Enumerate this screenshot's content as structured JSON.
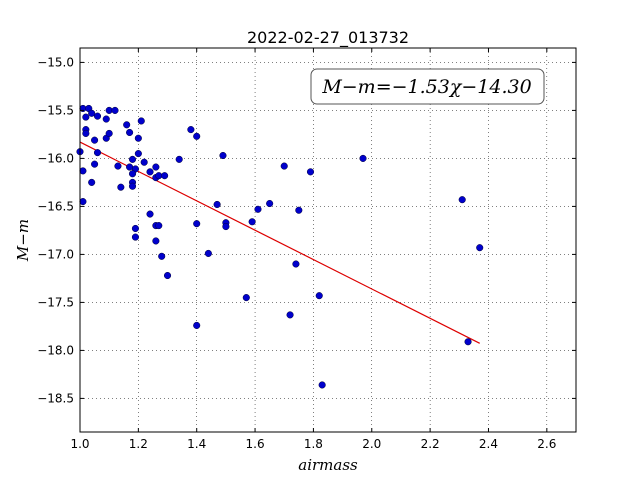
{
  "chart_data": {
    "type": "scatter",
    "title": "2022-02-27_013732",
    "xlabel": "airmass",
    "ylabel": "M−m",
    "xlim": [
      1.0,
      2.7
    ],
    "ylim": [
      -18.85,
      -14.85
    ],
    "y_inverted": true,
    "grid": true,
    "xticks": [
      1.0,
      1.2,
      1.4,
      1.6,
      1.8,
      2.0,
      2.2,
      2.4,
      2.6
    ],
    "xtick_labels": [
      "1.0",
      "1.2",
      "1.4",
      "1.6",
      "1.8",
      "2.0",
      "2.2",
      "2.4",
      "2.6"
    ],
    "yticks": [
      -15.0,
      -15.5,
      -16.0,
      -16.5,
      -17.0,
      -17.5,
      -18.0,
      -18.5
    ],
    "ytick_labels": [
      "−15.0",
      "−15.5",
      "−16.0",
      "−16.5",
      "−17.0",
      "−17.5",
      "−18.0",
      "−18.5"
    ],
    "annotation": "M−m=−1.53χ−14.30",
    "point_color": "#0000cc",
    "fit_color": "#dd0000",
    "fit": {
      "slope": -1.53,
      "intercept": -14.3,
      "x_range": [
        1.0,
        2.37
      ]
    },
    "points": [
      {
        "x": 1.01,
        "y": -15.48
      },
      {
        "x": 1.03,
        "y": -15.48
      },
      {
        "x": 1.02,
        "y": -15.57
      },
      {
        "x": 1.04,
        "y": -15.53
      },
      {
        "x": 1.06,
        "y": -15.56
      },
      {
        "x": 1.09,
        "y": -15.59
      },
      {
        "x": 1.1,
        "y": -15.5
      },
      {
        "x": 1.12,
        "y": -15.5
      },
      {
        "x": 1.02,
        "y": -15.7
      },
      {
        "x": 1.02,
        "y": -15.74
      },
      {
        "x": 1.05,
        "y": -15.81
      },
      {
        "x": 1.09,
        "y": -15.79
      },
      {
        "x": 1.1,
        "y": -15.74
      },
      {
        "x": 1.06,
        "y": -15.94
      },
      {
        "x": 1.0,
        "y": -15.93
      },
      {
        "x": 1.05,
        "y": -16.06
      },
      {
        "x": 1.01,
        "y": -16.13
      },
      {
        "x": 1.04,
        "y": -16.25
      },
      {
        "x": 1.01,
        "y": -16.45
      },
      {
        "x": 1.13,
        "y": -16.08
      },
      {
        "x": 1.14,
        "y": -16.3
      },
      {
        "x": 1.16,
        "y": -15.65
      },
      {
        "x": 1.17,
        "y": -15.73
      },
      {
        "x": 1.2,
        "y": -15.79
      },
      {
        "x": 1.21,
        "y": -15.61
      },
      {
        "x": 1.2,
        "y": -15.95
      },
      {
        "x": 1.18,
        "y": -16.01
      },
      {
        "x": 1.17,
        "y": -16.09
      },
      {
        "x": 1.19,
        "y": -16.11
      },
      {
        "x": 1.18,
        "y": -16.16
      },
      {
        "x": 1.18,
        "y": -16.25
      },
      {
        "x": 1.18,
        "y": -16.29
      },
      {
        "x": 1.22,
        "y": -16.04
      },
      {
        "x": 1.24,
        "y": -16.14
      },
      {
        "x": 1.26,
        "y": -16.09
      },
      {
        "x": 1.26,
        "y": -16.2
      },
      {
        "x": 1.27,
        "y": -16.18
      },
      {
        "x": 1.29,
        "y": -16.18
      },
      {
        "x": 1.24,
        "y": -16.58
      },
      {
        "x": 1.19,
        "y": -16.73
      },
      {
        "x": 1.19,
        "y": -16.82
      },
      {
        "x": 1.26,
        "y": -16.7
      },
      {
        "x": 1.27,
        "y": -16.7
      },
      {
        "x": 1.26,
        "y": -16.86
      },
      {
        "x": 1.28,
        "y": -17.02
      },
      {
        "x": 1.3,
        "y": -17.22
      },
      {
        "x": 1.34,
        "y": -16.01
      },
      {
        "x": 1.38,
        "y": -15.7
      },
      {
        "x": 1.4,
        "y": -15.77
      },
      {
        "x": 1.4,
        "y": -16.68
      },
      {
        "x": 1.44,
        "y": -16.99
      },
      {
        "x": 1.4,
        "y": -17.74
      },
      {
        "x": 1.47,
        "y": -16.48
      },
      {
        "x": 1.49,
        "y": -15.97
      },
      {
        "x": 1.5,
        "y": -16.67
      },
      {
        "x": 1.5,
        "y": -16.71
      },
      {
        "x": 1.57,
        "y": -17.45
      },
      {
        "x": 1.59,
        "y": -16.66
      },
      {
        "x": 1.61,
        "y": -16.53
      },
      {
        "x": 1.65,
        "y": -16.47
      },
      {
        "x": 1.7,
        "y": -16.08
      },
      {
        "x": 1.72,
        "y": -17.63
      },
      {
        "x": 1.74,
        "y": -17.1
      },
      {
        "x": 1.75,
        "y": -16.54
      },
      {
        "x": 1.79,
        "y": -16.14
      },
      {
        "x": 1.82,
        "y": -17.43
      },
      {
        "x": 1.83,
        "y": -18.36
      },
      {
        "x": 1.97,
        "y": -16.0
      },
      {
        "x": 2.31,
        "y": -16.43
      },
      {
        "x": 2.33,
        "y": -17.91
      },
      {
        "x": 2.37,
        "y": -16.93
      }
    ]
  }
}
